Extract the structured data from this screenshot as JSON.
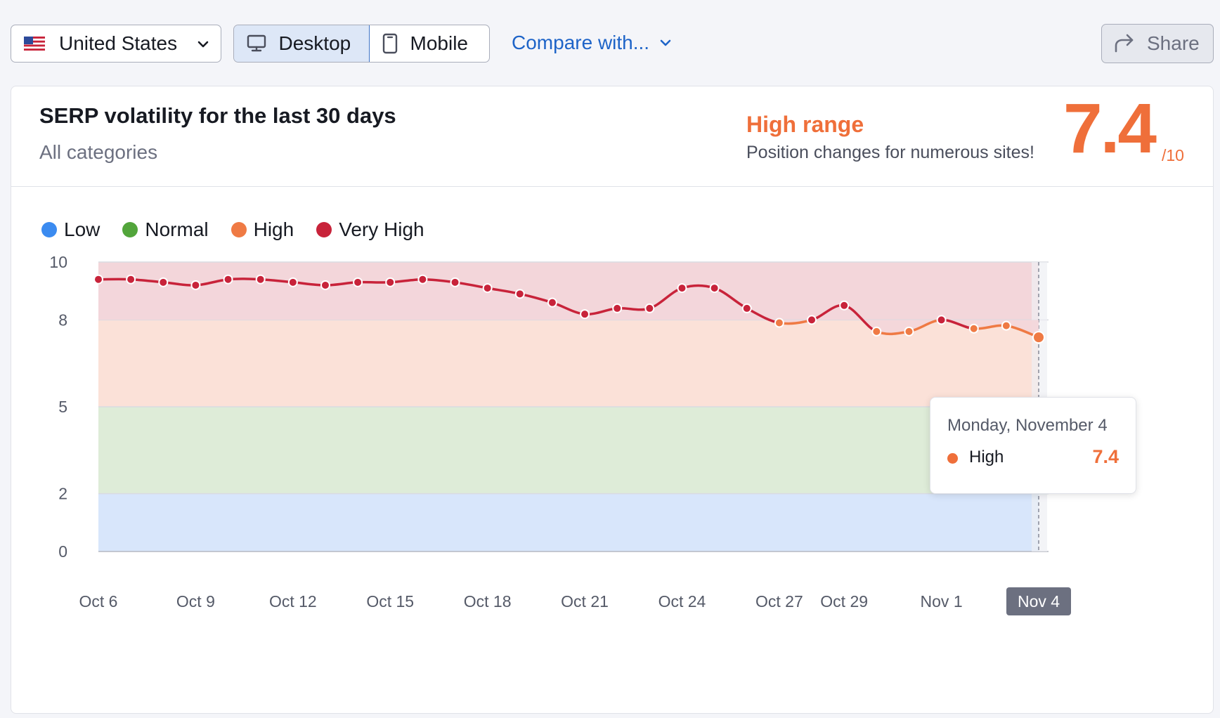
{
  "toolbar": {
    "country": "United States",
    "country_flag_icon": "us-flag-icon",
    "devices": [
      {
        "label": "Desktop",
        "icon": "monitor-icon",
        "selected": true
      },
      {
        "label": "Mobile",
        "icon": "phone-icon",
        "selected": false
      }
    ],
    "compare_label": "Compare with...",
    "share_label": "Share"
  },
  "card": {
    "title": "SERP volatility for the last 30 days",
    "subtitle": "All categories",
    "range_title": "High range",
    "range_desc": "Position changes for numerous sites!",
    "score": "7.4",
    "score_max": "/10"
  },
  "legend": [
    {
      "label": "Low",
      "color": "#3b8bf0"
    },
    {
      "label": "Normal",
      "color": "#52a53b"
    },
    {
      "label": "High",
      "color": "#ef7a44"
    },
    {
      "label": "Very High",
      "color": "#c8233a"
    }
  ],
  "tooltip": {
    "date": "Monday, November 4",
    "label": "High",
    "value": "7.4"
  },
  "chart_data": {
    "type": "area",
    "title": "SERP volatility for the last 30 days",
    "ylim": [
      0,
      10
    ],
    "y_ticks": [
      0,
      2,
      5,
      8,
      10
    ],
    "bands": [
      {
        "name": "Low",
        "from": 0,
        "to": 2,
        "color": "#d8e6fb"
      },
      {
        "name": "Normal",
        "from": 2,
        "to": 5,
        "color": "#deecd8"
      },
      {
        "name": "High",
        "from": 5,
        "to": 8,
        "color": "#fbe1d8"
      },
      {
        "name": "Very High",
        "from": 8,
        "to": 10,
        "color": "#f3d6da"
      }
    ],
    "x": [
      "Oct 6",
      "Oct 7",
      "Oct 8",
      "Oct 9",
      "Oct 10",
      "Oct 11",
      "Oct 12",
      "Oct 13",
      "Oct 14",
      "Oct 15",
      "Oct 16",
      "Oct 17",
      "Oct 18",
      "Oct 19",
      "Oct 20",
      "Oct 21",
      "Oct 22",
      "Oct 23",
      "Oct 24",
      "Oct 25",
      "Oct 26",
      "Oct 27",
      "Oct 28",
      "Oct 29",
      "Oct 30",
      "Oct 31",
      "Nov 1",
      "Nov 2",
      "Nov 3",
      "Nov 4"
    ],
    "x_tick_labels": [
      "Oct 6",
      "Oct 9",
      "Oct 12",
      "Oct 15",
      "Oct 18",
      "Oct 21",
      "Oct 24",
      "Oct 27",
      "Oct 29",
      "Nov 1",
      "Nov 4"
    ],
    "values": [
      9.4,
      9.4,
      9.3,
      9.2,
      9.4,
      9.4,
      9.3,
      9.2,
      9.3,
      9.3,
      9.4,
      9.3,
      9.1,
      8.9,
      8.6,
      8.2,
      8.4,
      8.4,
      9.1,
      9.1,
      8.4,
      7.9,
      8.0,
      8.5,
      7.6,
      7.6,
      8.0,
      7.7,
      7.8,
      7.4
    ],
    "selected_point": "Nov 4",
    "grid": true
  }
}
